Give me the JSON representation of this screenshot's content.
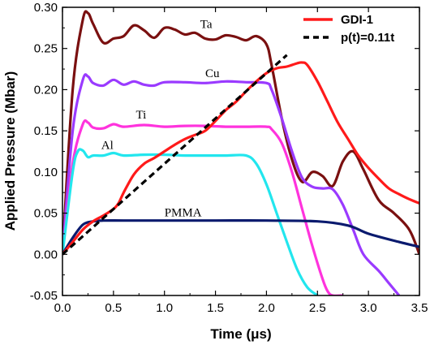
{
  "chart_data": {
    "type": "line",
    "xlabel": "Time (μs)",
    "ylabel": "Applied Pressure (Mbar)",
    "xlim": [
      0,
      3.5
    ],
    "ylim": [
      -0.05,
      0.3
    ],
    "xticks": [
      "0.0",
      "0.5",
      "1.0",
      "1.5",
      "2.0",
      "2.5",
      "3.0",
      "3.5"
    ],
    "yticks": [
      "-0.05",
      "0.00",
      "0.05",
      "0.10",
      "0.15",
      "0.20",
      "0.25",
      "0.30"
    ],
    "grid": false,
    "legend_position": "top-right",
    "legend": [
      {
        "name": "GDI-1",
        "color": "#ff1a1a",
        "style": "solid"
      },
      {
        "name": "p(t)=0.11t",
        "color": "#000000",
        "style": "dashed"
      }
    ],
    "series": [
      {
        "name": "Ta",
        "color": "#7a1010",
        "x": [
          0,
          0.1,
          0.2,
          0.25,
          0.3,
          0.4,
          0.5,
          0.6,
          0.7,
          0.8,
          0.9,
          1.0,
          1.1,
          1.2,
          1.3,
          1.4,
          1.5,
          1.6,
          1.7,
          1.8,
          1.9,
          2.0,
          2.05,
          2.15,
          2.25,
          2.35,
          2.45,
          2.55,
          2.65,
          2.75,
          2.85,
          2.95,
          3.1,
          3.25,
          3.4,
          3.5
        ],
        "y": [
          0.0,
          0.2,
          0.285,
          0.293,
          0.28,
          0.257,
          0.262,
          0.265,
          0.278,
          0.272,
          0.263,
          0.275,
          0.273,
          0.267,
          0.269,
          0.262,
          0.261,
          0.266,
          0.264,
          0.26,
          0.265,
          0.255,
          0.23,
          0.165,
          0.115,
          0.088,
          0.1,
          0.095,
          0.083,
          0.113,
          0.125,
          0.103,
          0.066,
          0.05,
          0.03,
          0.0
        ]
      },
      {
        "name": "Cu",
        "color": "#9a3aff",
        "x": [
          0,
          0.1,
          0.2,
          0.25,
          0.3,
          0.4,
          0.5,
          0.6,
          0.7,
          0.8,
          0.9,
          1.0,
          1.2,
          1.4,
          1.6,
          1.8,
          2.0,
          2.05,
          2.15,
          2.25,
          2.35,
          2.45,
          2.55,
          2.65,
          2.75,
          2.85,
          2.95,
          3.1,
          3.2,
          3.3
        ],
        "y": [
          0.0,
          0.15,
          0.212,
          0.216,
          0.208,
          0.205,
          0.212,
          0.206,
          0.21,
          0.206,
          0.205,
          0.209,
          0.209,
          0.208,
          0.21,
          0.209,
          0.208,
          0.2,
          0.165,
          0.125,
          0.093,
          0.082,
          0.08,
          0.079,
          0.06,
          0.03,
          0.0,
          -0.02,
          -0.035,
          -0.05
        ]
      },
      {
        "name": "Ti",
        "color": "#ff33dd",
        "x": [
          0,
          0.1,
          0.2,
          0.25,
          0.3,
          0.4,
          0.5,
          0.6,
          0.8,
          1.0,
          1.2,
          1.4,
          1.6,
          1.8,
          2.0,
          2.05,
          2.15,
          2.25,
          2.35,
          2.45,
          2.55,
          2.6,
          2.65,
          2.75
        ],
        "y": [
          0.0,
          0.11,
          0.158,
          0.16,
          0.154,
          0.153,
          0.158,
          0.155,
          0.157,
          0.155,
          0.156,
          0.156,
          0.155,
          0.155,
          0.155,
          0.152,
          0.135,
          0.1,
          0.055,
          0.01,
          -0.03,
          -0.045,
          -0.05,
          -0.05
        ]
      },
      {
        "name": "Al",
        "color": "#22e6ee",
        "x": [
          0,
          0.1,
          0.15,
          0.2,
          0.25,
          0.3,
          0.4,
          0.5,
          0.6,
          0.8,
          1.0,
          1.2,
          1.4,
          1.6,
          1.8,
          1.9,
          2.0,
          2.1,
          2.2,
          2.3,
          2.4,
          2.5
        ],
        "y": [
          0.0,
          0.1,
          0.125,
          0.126,
          0.118,
          0.12,
          0.12,
          0.123,
          0.12,
          0.121,
          0.121,
          0.12,
          0.12,
          0.12,
          0.12,
          0.11,
          0.085,
          0.05,
          0.015,
          -0.018,
          -0.04,
          -0.05
        ]
      },
      {
        "name": "PMMA",
        "color": "#0a1a6e",
        "x": [
          0,
          0.1,
          0.2,
          0.3,
          0.4,
          0.6,
          1.0,
          1.5,
          2.0,
          2.5,
          2.8,
          3.0,
          3.3,
          3.5
        ],
        "y": [
          0.0,
          0.02,
          0.036,
          0.04,
          0.041,
          0.041,
          0.041,
          0.041,
          0.041,
          0.04,
          0.035,
          0.025,
          0.015,
          0.009
        ]
      },
      {
        "name": "GDI-1",
        "color": "#ff1a1a",
        "x": [
          0,
          0.1,
          0.2,
          0.3,
          0.4,
          0.5,
          0.55,
          0.6,
          0.7,
          0.8,
          0.9,
          1.0,
          1.1,
          1.2,
          1.3,
          1.4,
          1.5,
          1.6,
          1.7,
          1.8,
          1.9,
          2.0,
          2.1,
          2.2,
          2.3,
          2.35,
          2.4,
          2.5,
          2.6,
          2.7,
          2.8,
          2.9,
          3.0,
          3.1,
          3.2,
          3.3,
          3.4,
          3.5
        ],
        "y": [
          0.0,
          0.015,
          0.03,
          0.04,
          0.047,
          0.055,
          0.062,
          0.075,
          0.097,
          0.11,
          0.117,
          0.125,
          0.133,
          0.14,
          0.145,
          0.15,
          0.162,
          0.175,
          0.185,
          0.198,
          0.21,
          0.22,
          0.226,
          0.228,
          0.232,
          0.233,
          0.23,
          0.21,
          0.185,
          0.16,
          0.14,
          0.12,
          0.105,
          0.092,
          0.08,
          0.073,
          0.067,
          0.062
        ]
      },
      {
        "name": "p(t)=0.11t",
        "color": "#000000",
        "dashed": true,
        "x": [
          0,
          2.2
        ],
        "y": [
          0.0,
          0.242
        ]
      }
    ],
    "annotations": [
      {
        "text": "Ta",
        "x": 1.35,
        "y": 0.275
      },
      {
        "text": "Cu",
        "x": 1.4,
        "y": 0.215
      },
      {
        "text": "Ti",
        "x": 0.72,
        "y": 0.165
      },
      {
        "text": "Al",
        "x": 0.38,
        "y": 0.128
      },
      {
        "text": "PMMA",
        "x": 1.0,
        "y": 0.046
      }
    ]
  }
}
